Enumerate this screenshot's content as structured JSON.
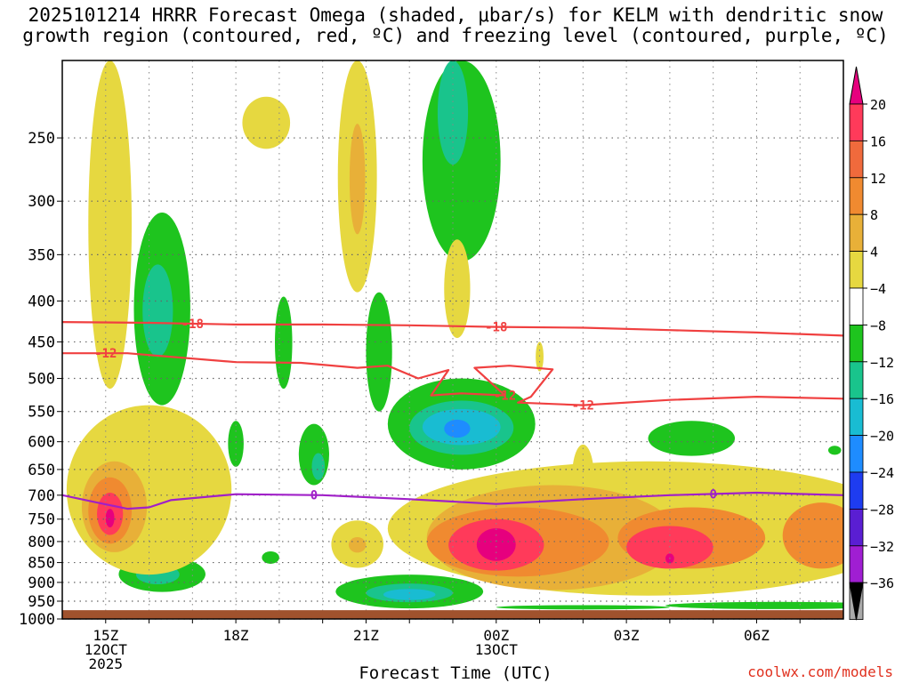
{
  "chart_data": {
    "type": "heatmap",
    "title_line1": "2025101214 HRRR Forecast Omega (shaded, μbar/s) for KELM with dendritic snow",
    "title_line2": "growth region (contoured, red, ºC) and freezing level (contoured, purple, ºC)",
    "xlabel": "Forecast Time (UTC)",
    "ylabel": "",
    "credit": "coolwx.com/models",
    "xlim": [
      14,
      32
    ],
    "ylim": [
      1000,
      200
    ],
    "y_ticks": [
      250,
      300,
      350,
      400,
      450,
      500,
      550,
      600,
      650,
      700,
      750,
      800,
      850,
      900,
      950,
      1000
    ],
    "x_ticks": [
      {
        "hour": 15,
        "line1": "15Z",
        "line2": "12OCT",
        "line3": "2025"
      },
      {
        "hour": 18,
        "line1": "18Z",
        "line2": "",
        "line3": ""
      },
      {
        "hour": 21,
        "line1": "21Z",
        "line2": "",
        "line3": ""
      },
      {
        "hour": 24,
        "line1": "00Z",
        "line2": "13OCT",
        "line3": ""
      },
      {
        "hour": 27,
        "line1": "03Z",
        "line2": "",
        "line3": ""
      },
      {
        "hour": 30,
        "line1": "06Z",
        "line2": "",
        "line3": ""
      }
    ],
    "colorbar": {
      "levels": [
        "20",
        "16",
        "12",
        "8",
        "4",
        "−4",
        "−8",
        "−12",
        "−16",
        "−20",
        "−24",
        "−28",
        "−32",
        "−36"
      ],
      "colors": [
        "#ff3a5a",
        "#f06a3c",
        "#f08a30",
        "#e8b038",
        "#e6d840",
        "#ffffff",
        "#1ec41e",
        "#19c48c",
        "#19bcd2",
        "#1e8cff",
        "#1e3cf0",
        "#5a1ed2",
        "#a01ed2",
        "#aaaaaa"
      ],
      "top_color": "#e6007e",
      "bottom_color": "#000000"
    },
    "terrain": {
      "pressure": 975,
      "color": "#a0522d"
    },
    "omega_regions": [
      {
        "t": 15.1,
        "p": 345,
        "rt": 0.5,
        "rp": 170,
        "value": 5
      },
      {
        "t": 16.3,
        "p": 425,
        "rt": 0.65,
        "rp": 115,
        "value": -6
      },
      {
        "t": 16.2,
        "p": 415,
        "rt": 0.35,
        "rp": 55,
        "value": -10
      },
      {
        "t": 18.7,
        "p": 240,
        "rt": 0.55,
        "rp": 18,
        "value": 5
      },
      {
        "t": 18,
        "p": 605,
        "rt": 0.18,
        "rp": 40,
        "value": -6
      },
      {
        "t": 19.1,
        "p": 455,
        "rt": 0.2,
        "rp": 60,
        "value": -6
      },
      {
        "t": 20.8,
        "p": 275,
        "rt": 0.45,
        "rp": 115,
        "value": 5
      },
      {
        "t": 20.8,
        "p": 285,
        "rt": 0.18,
        "rp": 45,
        "value": 10
      },
      {
        "t": 21.3,
        "p": 470,
        "rt": 0.3,
        "rp": 80,
        "value": -6
      },
      {
        "t": 23.2,
        "p": 262,
        "rt": 0.9,
        "rp": 95,
        "value": -6
      },
      {
        "t": 23.0,
        "p": 225,
        "rt": 0.35,
        "rp": 45,
        "value": -10
      },
      {
        "t": 23.1,
        "p": 390,
        "rt": 0.3,
        "rp": 55,
        "value": 5
      },
      {
        "t": 25.0,
        "p": 470,
        "rt": 0.09,
        "rp": 20,
        "value": 5
      },
      {
        "t": 23.2,
        "p": 575,
        "rt": 1.7,
        "rp": 75,
        "value": -6
      },
      {
        "t": 23.2,
        "p": 578,
        "rt": 1.2,
        "rp": 45,
        "value": -10
      },
      {
        "t": 23.2,
        "p": 576,
        "rt": 0.9,
        "rp": 30,
        "value": -13
      },
      {
        "t": 23.1,
        "p": 578,
        "rt": 0.3,
        "rp": 15,
        "value": -17
      },
      {
        "t": 19.8,
        "p": 625,
        "rt": 0.35,
        "rp": 55,
        "value": -6
      },
      {
        "t": 19.9,
        "p": 645,
        "rt": 0.15,
        "rp": 25,
        "value": -10
      },
      {
        "t": 28.5,
        "p": 595,
        "rt": 1.0,
        "rp": 30,
        "value": -6
      },
      {
        "t": 31.8,
        "p": 615,
        "rt": 0.15,
        "rp": 8,
        "value": -6
      },
      {
        "t": 16.3,
        "p": 880,
        "rt": 1.0,
        "rp": 45,
        "value": -6
      },
      {
        "t": 16.2,
        "p": 880,
        "rt": 0.5,
        "rp": 25,
        "value": -10
      },
      {
        "t": 18.8,
        "p": 838,
        "rt": 0.2,
        "rp": 15,
        "value": -6
      },
      {
        "t": 22.0,
        "p": 925,
        "rt": 1.7,
        "rp": 45,
        "value": -6
      },
      {
        "t": 22.0,
        "p": 928,
        "rt": 1.0,
        "rp": 25,
        "value": -10
      },
      {
        "t": 22.0,
        "p": 932,
        "rt": 0.6,
        "rp": 15,
        "value": -13
      },
      {
        "t": 30.5,
        "p": 962,
        "rt": 2.6,
        "rp": 10,
        "value": -6
      },
      {
        "t": 26.0,
        "p": 967,
        "rt": 2.0,
        "rp": 6,
        "value": -6
      },
      {
        "t": 16.0,
        "p": 710,
        "rt": 1.9,
        "rp": 170,
        "value": 5
      },
      {
        "t": 15.2,
        "p": 730,
        "rt": 0.75,
        "rp": 95,
        "value": 9
      },
      {
        "t": 15.1,
        "p": 735,
        "rt": 0.5,
        "rp": 70,
        "value": 14
      },
      {
        "t": 15.1,
        "p": 740,
        "rt": 0.3,
        "rp": 45,
        "value": 18
      },
      {
        "t": 15.1,
        "p": 748,
        "rt": 0.1,
        "rp": 20,
        "value": 22
      },
      {
        "t": 20.8,
        "p": 808,
        "rt": 0.6,
        "rp": 55,
        "value": 5
      },
      {
        "t": 20.8,
        "p": 808,
        "rt": 0.2,
        "rp": 18,
        "value": 9
      },
      {
        "t": 26.0,
        "p": 665,
        "rt": 0.25,
        "rp": 60,
        "value": 5
      },
      {
        "t": 27.5,
        "p": 785,
        "rt": 6.0,
        "rp": 150,
        "value": 5
      },
      {
        "t": 25.3,
        "p": 800,
        "rt": 2.9,
        "rp": 120,
        "value": 9
      },
      {
        "t": 24.5,
        "p": 805,
        "rt": 2.1,
        "rp": 80,
        "value": 14
      },
      {
        "t": 24.0,
        "p": 810,
        "rt": 1.1,
        "rp": 60,
        "value": 18
      },
      {
        "t": 24.0,
        "p": 808,
        "rt": 0.45,
        "rp": 38,
        "value": 22
      },
      {
        "t": 28.5,
        "p": 795,
        "rt": 1.7,
        "rp": 70,
        "value": 14
      },
      {
        "t": 28.0,
        "p": 815,
        "rt": 1.0,
        "rp": 50,
        "value": 18
      },
      {
        "t": 28.0,
        "p": 840,
        "rt": 0.1,
        "rp": 12,
        "value": 22
      },
      {
        "t": 31.5,
        "p": 790,
        "rt": 0.9,
        "rp": 75,
        "value": 14
      }
    ],
    "contours": [
      {
        "label": "-18",
        "color": "#f04040",
        "t": [
          14,
          16,
          18,
          20,
          22,
          24,
          26,
          28,
          30,
          32
        ],
        "p": [
          425,
          426,
          428,
          428,
          429,
          431,
          432,
          435,
          438,
          442
        ],
        "label_t": [
          17.0,
          24.0
        ]
      },
      {
        "label": "-12",
        "color": "#f04040",
        "t": [
          14,
          15.5,
          18,
          19.5,
          20.8,
          21.5,
          22.2,
          22.9,
          22.5,
          23.2,
          24.2,
          23.5,
          24.3,
          25.3,
          24.8,
          24.5,
          26,
          28,
          30,
          32
        ],
        "p": [
          465,
          465,
          477,
          478,
          485,
          482,
          500,
          488,
          525,
          522,
          525,
          485,
          482,
          487,
          527,
          536,
          540,
          532,
          527,
          530
        ],
        "label_t": [
          15.0,
          24.2,
          26.0
        ]
      },
      {
        "label": "0",
        "color": "#a020c8",
        "t": [
          14,
          14.8,
          15.5,
          16,
          16.5,
          18,
          20,
          22,
          24,
          26,
          28,
          30,
          32
        ],
        "p": [
          700,
          715,
          728,
          725,
          710,
          698,
          700,
          708,
          718,
          708,
          700,
          695,
          700
        ],
        "label_t": [
          19.8,
          29.0
        ]
      }
    ]
  }
}
